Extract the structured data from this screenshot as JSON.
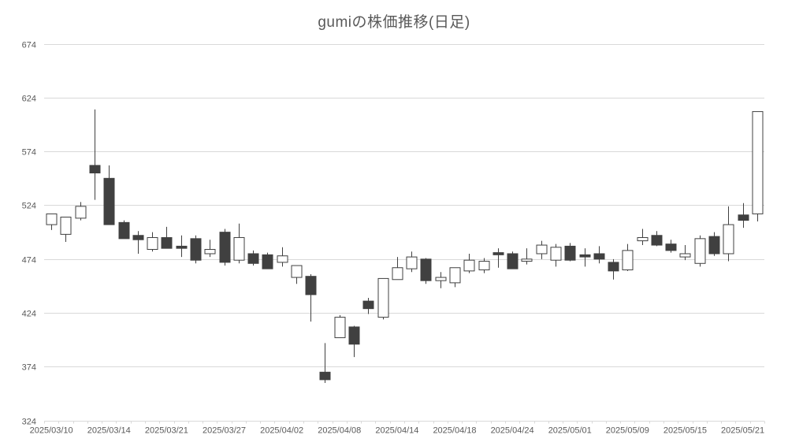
{
  "chart_data": {
    "type": "candlestick",
    "title": "gumiの株価推移(日足)",
    "xlabel": "",
    "ylabel": "",
    "y_axis": {
      "min": 324,
      "max": 674,
      "tick_interval": 50,
      "ticks": [
        674,
        624,
        574,
        524,
        474,
        424,
        374,
        324
      ]
    },
    "x_axis": {
      "label_every": 4,
      "tick_labels": [
        "2025/03/10",
        "2025/03/14",
        "2025/03/21",
        "2025/03/27",
        "2025/04/02",
        "2025/04/08",
        "2025/04/14",
        "2025/04/18",
        "2025/04/24",
        "2025/05/01",
        "2025/05/09",
        "2025/05/15",
        "2025/05/21"
      ]
    },
    "legend": "none",
    "grid": "horizontal",
    "colors": {
      "up_fill": "#ffffff",
      "down_fill": "#404040",
      "outline": "#404040",
      "wick": "#404040",
      "gridline": "#d9d9d9",
      "axis_line": "#d9d9d9",
      "label_color": "#595959",
      "title_color": "#595959",
      "background": "#ffffff"
    },
    "candles": [
      {
        "date": "2025/03/10",
        "open": 506,
        "high": 516,
        "low": 501,
        "close": 516
      },
      {
        "date": "2025/03/11",
        "open": 497,
        "high": 513,
        "low": 490,
        "close": 513
      },
      {
        "date": "2025/03/12",
        "open": 512,
        "high": 527,
        "low": 510,
        "close": 523
      },
      {
        "date": "2025/03/13",
        "open": 561,
        "high": 613,
        "low": 529,
        "close": 554
      },
      {
        "date": "2025/03/14",
        "open": 549,
        "high": 561,
        "low": 506,
        "close": 506
      },
      {
        "date": "2025/03/17",
        "open": 508,
        "high": 510,
        "low": 493,
        "close": 493
      },
      {
        "date": "2025/03/18",
        "open": 496,
        "high": 500,
        "low": 479,
        "close": 492
      },
      {
        "date": "2025/03/19",
        "open": 483,
        "high": 499,
        "low": 481,
        "close": 494
      },
      {
        "date": "2025/03/21",
        "open": 494,
        "high": 504,
        "low": 484,
        "close": 484
      },
      {
        "date": "2025/03/24",
        "open": 486,
        "high": 496,
        "low": 476,
        "close": 484
      },
      {
        "date": "2025/03/25",
        "open": 493,
        "high": 496,
        "low": 470,
        "close": 473
      },
      {
        "date": "2025/03/26",
        "open": 479,
        "high": 492,
        "low": 476,
        "close": 483
      },
      {
        "date": "2025/03/27",
        "open": 499,
        "high": 502,
        "low": 468,
        "close": 471
      },
      {
        "date": "2025/03/28",
        "open": 473,
        "high": 507,
        "low": 470,
        "close": 494
      },
      {
        "date": "2025/03/31",
        "open": 479,
        "high": 482,
        "low": 468,
        "close": 470
      },
      {
        "date": "2025/04/01",
        "open": 478,
        "high": 480,
        "low": 465,
        "close": 465
      },
      {
        "date": "2025/04/02",
        "open": 471,
        "high": 485,
        "low": 467,
        "close": 477
      },
      {
        "date": "2025/04/03",
        "open": 457,
        "high": 468,
        "low": 451,
        "close": 468
      },
      {
        "date": "2025/04/04",
        "open": 458,
        "high": 460,
        "low": 416,
        "close": 441
      },
      {
        "date": "2025/04/07",
        "open": 369,
        "high": 396,
        "low": 359,
        "close": 362
      },
      {
        "date": "2025/04/08",
        "open": 401,
        "high": 422,
        "low": 401,
        "close": 420
      },
      {
        "date": "2025/04/09",
        "open": 411,
        "high": 412,
        "low": 383,
        "close": 395
      },
      {
        "date": "2025/04/10",
        "open": 435,
        "high": 438,
        "low": 423,
        "close": 428
      },
      {
        "date": "2025/04/11",
        "open": 420,
        "high": 456,
        "low": 418,
        "close": 456
      },
      {
        "date": "2025/04/14",
        "open": 455,
        "high": 476,
        "low": 455,
        "close": 466
      },
      {
        "date": "2025/04/15",
        "open": 465,
        "high": 481,
        "low": 462,
        "close": 476
      },
      {
        "date": "2025/04/16",
        "open": 474,
        "high": 475,
        "low": 451,
        "close": 454
      },
      {
        "date": "2025/04/17",
        "open": 454,
        "high": 462,
        "low": 447,
        "close": 457
      },
      {
        "date": "2025/04/18",
        "open": 452,
        "high": 466,
        "low": 448,
        "close": 466
      },
      {
        "date": "2025/04/21",
        "open": 463,
        "high": 479,
        "low": 461,
        "close": 473
      },
      {
        "date": "2025/04/22",
        "open": 464,
        "high": 475,
        "low": 461,
        "close": 472
      },
      {
        "date": "2025/04/23",
        "open": 480,
        "high": 484,
        "low": 466,
        "close": 478
      },
      {
        "date": "2025/04/24",
        "open": 479,
        "high": 481,
        "low": 465,
        "close": 465
      },
      {
        "date": "2025/04/25",
        "open": 472,
        "high": 484,
        "low": 469,
        "close": 474
      },
      {
        "date": "2025/04/28",
        "open": 479,
        "high": 491,
        "low": 474,
        "close": 487
      },
      {
        "date": "2025/04/30",
        "open": 473,
        "high": 488,
        "low": 467,
        "close": 485
      },
      {
        "date": "2025/05/01",
        "open": 486,
        "high": 489,
        "low": 472,
        "close": 473
      },
      {
        "date": "2025/05/02",
        "open": 478,
        "high": 484,
        "low": 467,
        "close": 476
      },
      {
        "date": "2025/05/07",
        "open": 479,
        "high": 486,
        "low": 470,
        "close": 474
      },
      {
        "date": "2025/05/08",
        "open": 471,
        "high": 474,
        "low": 455,
        "close": 463
      },
      {
        "date": "2025/05/09",
        "open": 464,
        "high": 488,
        "low": 463,
        "close": 482
      },
      {
        "date": "2025/05/12",
        "open": 491,
        "high": 502,
        "low": 487,
        "close": 494
      },
      {
        "date": "2025/05/13",
        "open": 496,
        "high": 500,
        "low": 486,
        "close": 487
      },
      {
        "date": "2025/05/14",
        "open": 488,
        "high": 492,
        "low": 480,
        "close": 482
      },
      {
        "date": "2025/05/15",
        "open": 476,
        "high": 487,
        "low": 473,
        "close": 479
      },
      {
        "date": "2025/05/16",
        "open": 470,
        "high": 496,
        "low": 467,
        "close": 493
      },
      {
        "date": "2025/05/19",
        "open": 495,
        "high": 499,
        "low": 477,
        "close": 479
      },
      {
        "date": "2025/05/20",
        "open": 479,
        "high": 523,
        "low": 472,
        "close": 506
      },
      {
        "date": "2025/05/21",
        "open": 515,
        "high": 526,
        "low": 503,
        "close": 510
      },
      {
        "date": "2025/05/22",
        "open": 516,
        "high": 611,
        "low": 509,
        "close": 611
      }
    ]
  }
}
